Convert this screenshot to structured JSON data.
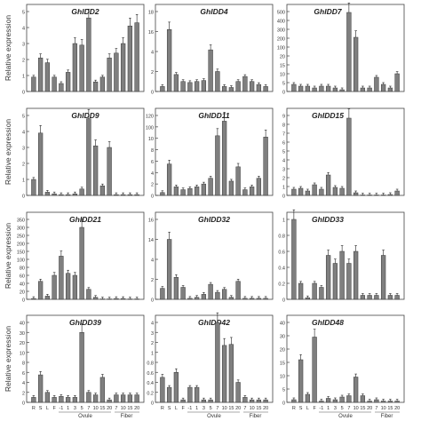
{
  "figure": {
    "ylabel": "Relative expression",
    "groups": [
      {
        "label": "Ovule"
      },
      {
        "label": "Fiber"
      }
    ]
  },
  "chart_data": [
    {
      "type": "bar",
      "title": "GhIDD2",
      "ylabel": "Relative expression",
      "ylim": [
        0,
        5
      ],
      "yticks": [
        0,
        1,
        2,
        3,
        4,
        5
      ],
      "categories": [
        "R",
        "S",
        "L",
        "F",
        "-1",
        "1",
        "3",
        "5",
        "7",
        "10",
        "15",
        "20",
        "7",
        "10",
        "15",
        "20"
      ],
      "values": [
        0.9,
        2.1,
        1.8,
        0.9,
        0.5,
        1.2,
        3.0,
        2.9,
        4.6,
        0.6,
        0.9,
        2.1,
        2.4,
        3.0,
        4.1,
        4.3
      ]
    },
    {
      "type": "bar",
      "title": "GhIDD4",
      "ylim": [
        0,
        18
      ],
      "yticks": [
        0,
        2,
        4,
        16,
        18
      ],
      "categories": [
        "R",
        "S",
        "L",
        "F",
        "-1",
        "1",
        "3",
        "5",
        "7",
        "10",
        "15",
        "20",
        "7",
        "10",
        "15",
        "20"
      ],
      "values": [
        0.5,
        16.2,
        1.7,
        1.0,
        0.9,
        1.0,
        1.1,
        5.0,
        2.0,
        0.5,
        0.4,
        1.0,
        1.5,
        1.0,
        0.7,
        0.5
      ]
    },
    {
      "type": "bar",
      "title": "GhIDD7",
      "ylim": [
        0,
        500
      ],
      "yticks": [
        0,
        5,
        10,
        15,
        20,
        100,
        200,
        300,
        400,
        500
      ],
      "categories": [
        "R",
        "S",
        "L",
        "F",
        "-1",
        "1",
        "3",
        "5",
        "7",
        "10",
        "15",
        "20",
        "7",
        "10",
        "15",
        "20"
      ],
      "values": [
        4,
        3,
        3,
        2,
        3,
        3,
        2,
        1,
        490,
        210,
        2,
        2,
        8,
        4,
        2,
        10
      ]
    },
    {
      "type": "bar",
      "title": "GhIDD9",
      "ylim": [
        0,
        5
      ],
      "yticks": [
        0,
        1,
        2,
        3,
        4,
        5
      ],
      "categories": [
        "R",
        "S",
        "L",
        "F",
        "-1",
        "1",
        "3",
        "5",
        "7",
        "10",
        "15",
        "20",
        "7",
        "10",
        "15",
        "20"
      ],
      "values": [
        1.0,
        3.9,
        0.2,
        0.1,
        0.05,
        0.05,
        0.1,
        0.4,
        4.8,
        3.1,
        0.6,
        3.0,
        0.05,
        0.05,
        0.05,
        0.05
      ]
    },
    {
      "type": "bar",
      "title": "GhIDD11",
      "ylim": [
        0,
        120
      ],
      "yticks": [
        0,
        2,
        4,
        6,
        8,
        10,
        100,
        120
      ],
      "categories": [
        "R",
        "S",
        "L",
        "F",
        "-1",
        "1",
        "3",
        "5",
        "7",
        "10",
        "15",
        "20",
        "7",
        "10",
        "15",
        "20"
      ],
      "values": [
        0.5,
        5.5,
        1.5,
        1.0,
        1.2,
        1.5,
        2.0,
        3.0,
        30,
        110,
        2.5,
        5.0,
        1.0,
        1.5,
        3.0,
        20
      ]
    },
    {
      "type": "bar",
      "title": "GhIDD15",
      "ylim": [
        0,
        9
      ],
      "yticks": [
        0,
        1,
        2,
        3,
        4,
        5,
        6,
        7,
        8,
        9
      ],
      "categories": [
        "R",
        "S",
        "L",
        "F",
        "-1",
        "1",
        "3",
        "5",
        "7",
        "10",
        "15",
        "20",
        "7",
        "10",
        "15",
        "20"
      ],
      "values": [
        0.7,
        0.8,
        0.5,
        1.2,
        0.7,
        2.3,
        0.9,
        0.8,
        8.7,
        0.3,
        0.05,
        0.05,
        0.05,
        0.05,
        0.1,
        0.5
      ]
    },
    {
      "type": "bar",
      "title": "GhIDD21",
      "ylim": [
        0,
        350
      ],
      "yticks": [
        0,
        20,
        40,
        60,
        80,
        100,
        150,
        200,
        250,
        300,
        350
      ],
      "categories": [
        "R",
        "S",
        "L",
        "F",
        "-1",
        "1",
        "3",
        "5",
        "7",
        "10",
        "15",
        "20",
        "7",
        "10",
        "15",
        "20"
      ],
      "values": [
        2,
        45,
        8,
        60,
        120,
        65,
        60,
        300,
        25,
        5,
        1,
        1,
        2,
        2,
        1,
        1
      ]
    },
    {
      "type": "bar",
      "title": "GhIDD32",
      "ylim": [
        0,
        16
      ],
      "yticks": [
        0,
        2,
        4,
        14,
        16
      ],
      "categories": [
        "R",
        "S",
        "L",
        "F",
        "-1",
        "1",
        "3",
        "5",
        "7",
        "10",
        "15",
        "20",
        "7",
        "10",
        "15",
        "20"
      ],
      "values": [
        1.1,
        14.0,
        2.2,
        1.2,
        0.1,
        0.2,
        0.5,
        1.5,
        0.7,
        1.0,
        0.2,
        1.8,
        0.1,
        0.1,
        0.1,
        0.1
      ]
    },
    {
      "type": "bar",
      "title": "GhIDD33",
      "ylim": [
        0,
        1.0
      ],
      "yticks": [
        0.0,
        0.2,
        0.4,
        0.6,
        0.8,
        1.0
      ],
      "categories": [
        "R",
        "S",
        "L",
        "F",
        "-1",
        "1",
        "3",
        "5",
        "7",
        "10",
        "15",
        "20",
        "7",
        "10",
        "15",
        "20"
      ],
      "values": [
        1.0,
        0.2,
        0.02,
        0.2,
        0.15,
        0.55,
        0.45,
        0.6,
        0.45,
        0.6,
        0.05,
        0.05,
        0.05,
        0.55,
        0.05,
        0.05
      ]
    },
    {
      "type": "bar",
      "title": "GhIDD39",
      "ylim": [
        0,
        40
      ],
      "yticks": [
        0,
        2,
        4,
        6,
        8,
        10,
        20,
        30,
        40
      ],
      "categories": [
        "R",
        "S",
        "L",
        "F",
        "-1",
        "1",
        "3",
        "5",
        "7",
        "10",
        "15",
        "20",
        "7",
        "10",
        "15",
        "20"
      ],
      "values": [
        1.0,
        5.5,
        2.0,
        1.0,
        1.2,
        1.0,
        1.0,
        30,
        2.0,
        1.5,
        5.0,
        0.5,
        1.5,
        1.5,
        1.5,
        1.5
      ]
    },
    {
      "type": "bar",
      "title": "GhIDD42",
      "ylim": [
        0,
        4.0
      ],
      "yticks": [
        0.0,
        0.2,
        0.4,
        0.6,
        0.8,
        1.0,
        2.0,
        3.0,
        4.0
      ],
      "categories": [
        "R",
        "S",
        "L",
        "F",
        "-1",
        "1",
        "3",
        "5",
        "7",
        "10",
        "15",
        "20",
        "7",
        "10",
        "15",
        "20"
      ],
      "values": [
        0.5,
        0.3,
        0.6,
        0.05,
        0.3,
        0.3,
        0.05,
        0.05,
        4.0,
        1.7,
        1.8,
        0.4,
        0.1,
        0.05,
        0.05,
        0.05
      ]
    },
    {
      "type": "bar",
      "title": "GhIDD48",
      "ylim": [
        0,
        40
      ],
      "yticks": [
        0,
        5,
        10,
        15,
        20,
        30,
        40
      ],
      "categories": [
        "R",
        "S",
        "L",
        "F",
        "-1",
        "1",
        "3",
        "5",
        "7",
        "10",
        "15",
        "20",
        "7",
        "10",
        "15",
        "20"
      ],
      "values": [
        1.0,
        16.0,
        3.0,
        29.0,
        0.5,
        1.5,
        1.0,
        2.0,
        2.5,
        9.5,
        2.5,
        0.5,
        1.0,
        0.5,
        0.5,
        0.5
      ]
    }
  ]
}
